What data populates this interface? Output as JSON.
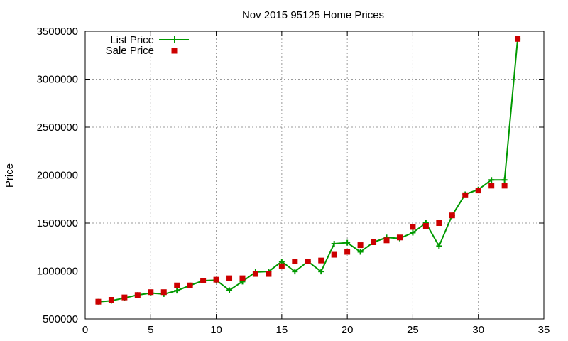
{
  "chart_data": {
    "type": "line",
    "title": "Nov 2015 95125 Home Prices",
    "xlabel": "",
    "ylabel": "Price",
    "xlim": [
      0,
      35
    ],
    "ylim": [
      500000,
      3500000
    ],
    "x_ticks": [
      0,
      5,
      10,
      15,
      20,
      25,
      30,
      35
    ],
    "y_ticks": [
      500000,
      1000000,
      1500000,
      2000000,
      2500000,
      3000000,
      3500000
    ],
    "x_tick_labels": [
      "0",
      "5",
      "10",
      "15",
      "20",
      "25",
      "30",
      "35"
    ],
    "y_tick_labels": [
      "500000",
      "1000000",
      "1500000",
      "2000000",
      "2500000",
      "3000000",
      "3500000"
    ],
    "grid": true,
    "legend_position": "top-left",
    "series": [
      {
        "name": "List Price",
        "style": "line with plus markers",
        "color": "#009900",
        "x": [
          1,
          2,
          3,
          4,
          5,
          6,
          7,
          8,
          9,
          10,
          11,
          12,
          13,
          14,
          15,
          16,
          17,
          18,
          19,
          20,
          21,
          22,
          23,
          24,
          25,
          26,
          27,
          28,
          29,
          30,
          31,
          32,
          33
        ],
        "y": [
          680000,
          690000,
          720000,
          750000,
          770000,
          760000,
          795000,
          850000,
          900000,
          905000,
          800000,
          890000,
          990000,
          995000,
          1100000,
          995000,
          1100000,
          995000,
          1285000,
          1295000,
          1200000,
          1300000,
          1350000,
          1340000,
          1400000,
          1500000,
          1260000,
          1580000,
          1800000,
          1850000,
          1950000,
          1950000,
          3420000
        ]
      },
      {
        "name": "Sale Price",
        "style": "square markers",
        "color": "#cc0000",
        "x": [
          1,
          2,
          3,
          4,
          5,
          6,
          7,
          8,
          9,
          10,
          11,
          12,
          13,
          14,
          15,
          16,
          17,
          18,
          19,
          20,
          21,
          22,
          23,
          24,
          25,
          26,
          27,
          28,
          29,
          30,
          31,
          32,
          33
        ],
        "y": [
          680000,
          700000,
          725000,
          750000,
          780000,
          780000,
          850000,
          850000,
          900000,
          910000,
          925000,
          925000,
          970000,
          970000,
          1050000,
          1100000,
          1100000,
          1110000,
          1170000,
          1200000,
          1270000,
          1300000,
          1320000,
          1350000,
          1460000,
          1470000,
          1500000,
          1580000,
          1790000,
          1840000,
          1890000,
          1890000,
          3420000
        ]
      }
    ]
  }
}
